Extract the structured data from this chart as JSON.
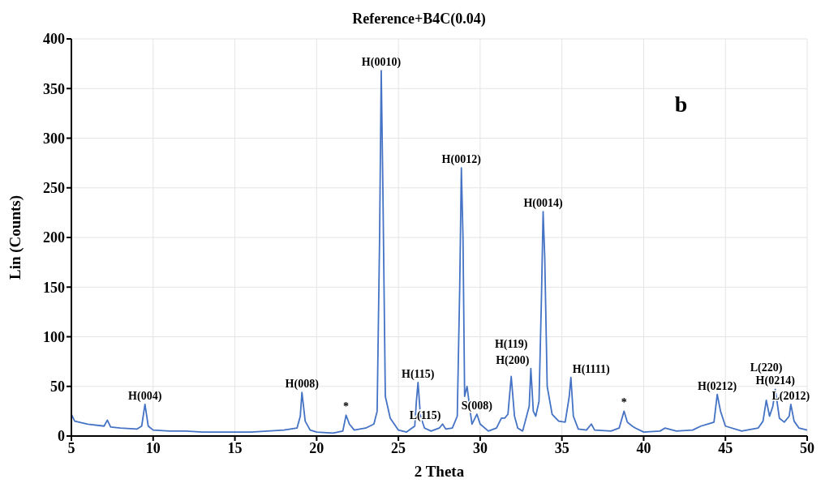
{
  "chart_data": {
    "type": "line",
    "title": "Reference+B4C(0.04)",
    "xlabel": "2 Theta",
    "ylabel": "Lin (Counts)",
    "x": [
      5.0,
      5.2,
      6,
      7,
      7.2,
      7.4,
      8,
      9,
      9.3,
      9.5,
      9.7,
      10,
      11,
      12,
      13,
      14,
      15,
      16,
      17,
      18,
      18.8,
      19.0,
      19.1,
      19.3,
      19.6,
      20,
      21,
      21.6,
      21.8,
      22.0,
      22.3,
      23,
      23.5,
      23.7,
      23.85,
      23.95,
      24.05,
      24.2,
      24.5,
      25,
      25.5,
      26,
      26.1,
      26.2,
      26.35,
      26.6,
      27,
      27.5,
      27.7,
      27.9,
      28.3,
      28.6,
      28.75,
      28.85,
      28.95,
      29.05,
      29.2,
      29.35,
      29.5,
      29.8,
      30,
      30.5,
      31,
      31.3,
      31.5,
      31.7,
      31.9,
      32.1,
      32.3,
      32.6,
      33.0,
      33.1,
      33.25,
      33.4,
      33.6,
      33.75,
      33.85,
      33.95,
      34.1,
      34.4,
      34.8,
      35.2,
      35.45,
      35.55,
      35.7,
      36,
      36.5,
      36.8,
      37,
      38,
      38.5,
      38.8,
      39.0,
      39.3,
      39.5,
      40,
      41,
      41.3,
      42,
      43,
      43.5,
      43.9,
      44.3,
      44.5,
      44.7,
      45,
      46,
      47,
      47.3,
      47.5,
      47.7,
      47.9,
      48.05,
      48.3,
      48.6,
      48.9,
      49.0,
      49.2,
      49.5,
      50
    ],
    "series": [
      {
        "color": "#4472c4",
        "values": [
          22,
          15,
          12,
          10,
          16,
          9,
          8,
          7,
          10,
          32,
          10,
          6,
          5,
          5,
          4,
          4,
          4,
          4,
          5,
          6,
          8,
          20,
          44,
          15,
          6,
          4,
          3,
          5,
          21,
          12,
          6,
          8,
          12,
          25,
          200,
          368,
          250,
          40,
          18,
          6,
          4,
          10,
          35,
          54,
          20,
          8,
          5,
          8,
          12,
          7,
          8,
          20,
          150,
          270,
          200,
          40,
          50,
          30,
          12,
          22,
          12,
          5,
          8,
          18,
          18,
          22,
          60,
          20,
          8,
          5,
          30,
          68,
          25,
          20,
          35,
          140,
          226,
          180,
          50,
          22,
          15,
          14,
          40,
          59,
          20,
          7,
          6,
          12,
          6,
          5,
          8,
          25,
          14,
          10,
          8,
          4,
          5,
          8,
          5,
          6,
          10,
          12,
          14,
          42,
          25,
          10,
          5,
          8,
          15,
          36,
          20,
          30,
          47,
          18,
          14,
          20,
          32,
          15,
          8,
          6
        ]
      }
    ],
    "xlim": [
      5,
      50
    ],
    "xticks": [
      5,
      10,
      15,
      20,
      25,
      30,
      35,
      40,
      45,
      50
    ],
    "ylim": [
      0,
      400
    ],
    "yticks": [
      0,
      50,
      100,
      150,
      200,
      250,
      300,
      350,
      400
    ],
    "grid": true,
    "legend": false,
    "marker": "none",
    "line_style": "solid",
    "annotations": [
      {
        "text": "H(004)",
        "x": 9.5,
        "y": 32
      },
      {
        "text": "H(008)",
        "x": 19.1,
        "y": 44
      },
      {
        "text": "*",
        "x": 21.8,
        "y": 21
      },
      {
        "text": "H(0010)",
        "x": 23.95,
        "y": 368
      },
      {
        "text": "H(115)",
        "x": 26.2,
        "y": 54
      },
      {
        "text": "L(115)",
        "x": 27.7,
        "y": 12
      },
      {
        "text": "H(0012)",
        "x": 28.85,
        "y": 270
      },
      {
        "text": "S(008)",
        "x": 29.8,
        "y": 22
      },
      {
        "text": "H(119)",
        "x": 31.9,
        "y": 60
      },
      {
        "text": "H(200)",
        "x": 33.1,
        "y": 68
      },
      {
        "text": "H(0014)",
        "x": 33.85,
        "y": 226
      },
      {
        "text": "H(1111)",
        "x": 35.55,
        "y": 59
      },
      {
        "text": "*",
        "x": 38.8,
        "y": 25
      },
      {
        "text": "H(0212)",
        "x": 44.5,
        "y": 42
      },
      {
        "text": "L(220)",
        "x": 47.5,
        "y": 36
      },
      {
        "text": "H(0214)",
        "x": 48.05,
        "y": 47
      },
      {
        "text": "L(2012)",
        "x": 49.0,
        "y": 32
      },
      "b"
    ]
  }
}
